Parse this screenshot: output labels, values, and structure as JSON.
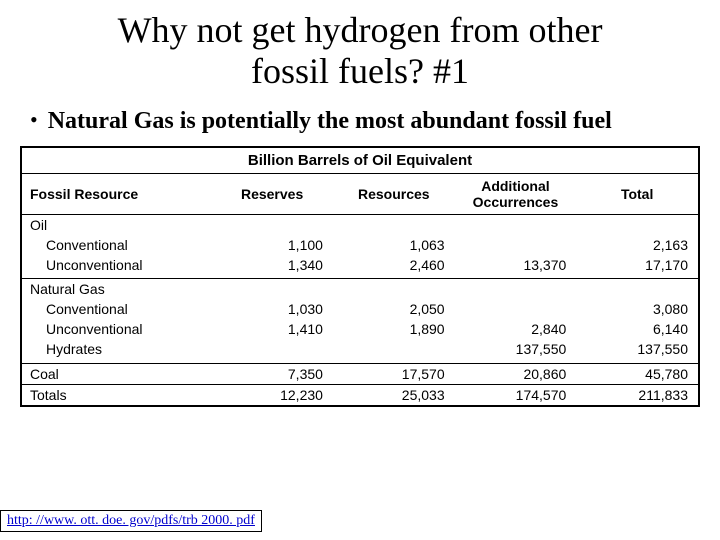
{
  "title_line1": "Why not get hydrogen from other",
  "title_line2": "fossil fuels? #1",
  "bullet_dot": "•",
  "bullet_text": "Natural Gas is potentially the most abundant fossil fuel",
  "table": {
    "title": "Billion Barrels of Oil Equivalent",
    "header": {
      "c0": "Fossil Resource",
      "c1": "Reserves",
      "c2": "Resources",
      "c3_l1": "Additional",
      "c3_l2": "Occurrences",
      "c4": "Total"
    },
    "oil": {
      "label": "Oil",
      "conv": {
        "label": "Conventional",
        "reserves": "1,100",
        "resources": "1,063",
        "additional": "",
        "total": "2,163"
      },
      "unconv": {
        "label": "Unconventional",
        "reserves": "1,340",
        "resources": "2,460",
        "additional": "13,370",
        "total": "17,170"
      }
    },
    "gas": {
      "label": "Natural Gas",
      "conv": {
        "label": "Conventional",
        "reserves": "1,030",
        "resources": "2,050",
        "additional": "",
        "total": "3,080"
      },
      "unconv": {
        "label": "Unconventional",
        "reserves": "1,410",
        "resources": "1,890",
        "additional": "2,840",
        "total": "6,140"
      },
      "hyd": {
        "label": "Hydrates",
        "reserves": "",
        "resources": "",
        "additional": "137,550",
        "total": "137,550"
      }
    },
    "coal": {
      "label": "Coal",
      "reserves": "7,350",
      "resources": "17,570",
      "additional": "20,860",
      "total": "45,780"
    },
    "totals": {
      "label": "Totals",
      "reserves": "12,230",
      "resources": "25,033",
      "additional": "174,570",
      "total": "211,833"
    }
  },
  "citation": {
    "text": "http: //www. ott. doe. gov/pdfs/trb 2000. pdf",
    "href": "http://www.ott.doe.gov/pdfs/trb2000.pdf"
  }
}
